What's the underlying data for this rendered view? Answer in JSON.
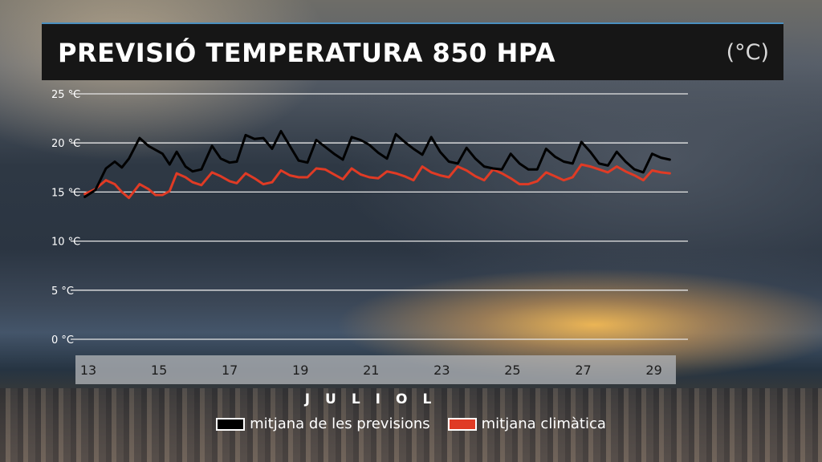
{
  "title": "PREVISIÓ TEMPERATURA 850 HPA",
  "unit": "(°C)",
  "chart_data": {
    "type": "line",
    "title": "PREVISIÓ TEMPERATURA 850 HPA",
    "xlabel": "JULIOL",
    "ylabel": "",
    "ylim": [
      0,
      25
    ],
    "xlim": [
      13,
      29.6
    ],
    "yticks": [
      0,
      5,
      10,
      15,
      20,
      25
    ],
    "ytick_labels": [
      "0 °C",
      "5 °C",
      "10 °C",
      "15 °C",
      "20 °C",
      "25 °C"
    ],
    "xticks": [
      13,
      15,
      17,
      19,
      21,
      23,
      25,
      27,
      29
    ],
    "xtick_labels": [
      "13",
      "15",
      "17",
      "19",
      "21",
      "23",
      "25",
      "27",
      "29"
    ],
    "grid": true,
    "legend_position": "bottom-center",
    "series": [
      {
        "name": "mitjana de les previsions",
        "color": "#000000",
        "x": [
          12.9,
          13.2,
          13.5,
          13.75,
          13.95,
          14.15,
          14.45,
          14.7,
          14.9,
          15.1,
          15.3,
          15.5,
          15.75,
          15.95,
          16.2,
          16.5,
          16.75,
          17,
          17.2,
          17.45,
          17.7,
          17.95,
          18.2,
          18.45,
          18.7,
          18.95,
          19.2,
          19.45,
          19.7,
          19.95,
          20.2,
          20.45,
          20.7,
          20.95,
          21.2,
          21.45,
          21.7,
          21.95,
          22.2,
          22.45,
          22.7,
          22.95,
          23.2,
          23.45,
          23.7,
          23.95,
          24.2,
          24.45,
          24.7,
          24.95,
          25.2,
          25.45,
          25.7,
          25.95,
          26.2,
          26.45,
          26.7,
          26.95,
          27.2,
          27.45,
          27.7,
          27.95,
          28.2,
          28.45,
          28.7,
          28.95,
          29.2,
          29.45
        ],
        "y": [
          14.5,
          15.2,
          17.4,
          18.1,
          17.5,
          18.4,
          20.5,
          19.7,
          19.3,
          18.9,
          17.8,
          19.1,
          17.6,
          17.1,
          17.3,
          19.7,
          18.4,
          18.0,
          18.1,
          20.8,
          20.4,
          20.5,
          19.4,
          21.2,
          19.7,
          18.2,
          18.0,
          20.3,
          19.6,
          18.9,
          18.3,
          20.6,
          20.3,
          19.8,
          19.0,
          18.4,
          20.9,
          20.1,
          19.4,
          18.8,
          20.6,
          19.1,
          18.1,
          17.9,
          19.5,
          18.4,
          17.6,
          17.4,
          17.3,
          18.9,
          17.9,
          17.3,
          17.3,
          19.4,
          18.6,
          18.1,
          17.9,
          20.1,
          19.1,
          17.9,
          17.7,
          19.1,
          18.1,
          17.3,
          17.0,
          18.9,
          18.5,
          18.3
        ]
      },
      {
        "name": "mitjana climàtica",
        "color": "#e03b25",
        "x": [
          12.9,
          13.2,
          13.5,
          13.75,
          13.95,
          14.15,
          14.45,
          14.7,
          14.9,
          15.1,
          15.3,
          15.5,
          15.75,
          15.95,
          16.2,
          16.5,
          16.75,
          17,
          17.2,
          17.45,
          17.7,
          17.95,
          18.2,
          18.45,
          18.7,
          18.95,
          19.2,
          19.45,
          19.7,
          19.95,
          20.2,
          20.45,
          20.7,
          20.95,
          21.2,
          21.45,
          21.7,
          21.95,
          22.2,
          22.45,
          22.7,
          22.95,
          23.2,
          23.45,
          23.7,
          23.95,
          24.2,
          24.45,
          24.7,
          24.95,
          25.2,
          25.45,
          25.7,
          25.95,
          26.2,
          26.45,
          26.7,
          26.95,
          27.2,
          27.45,
          27.7,
          27.95,
          28.2,
          28.45,
          28.7,
          28.95,
          29.2,
          29.45
        ],
        "y": [
          14.8,
          15.3,
          16.2,
          15.8,
          15.0,
          14.4,
          15.8,
          15.3,
          14.7,
          14.7,
          15.1,
          16.9,
          16.5,
          16.0,
          15.7,
          17.0,
          16.6,
          16.1,
          15.9,
          16.9,
          16.4,
          15.8,
          16.0,
          17.2,
          16.7,
          16.5,
          16.5,
          17.4,
          17.3,
          16.8,
          16.3,
          17.4,
          16.8,
          16.5,
          16.4,
          17.1,
          16.9,
          16.6,
          16.2,
          17.6,
          17.0,
          16.7,
          16.5,
          17.6,
          17.2,
          16.6,
          16.2,
          17.3,
          16.9,
          16.4,
          15.8,
          15.8,
          16.1,
          17.0,
          16.6,
          16.2,
          16.5,
          17.8,
          17.6,
          17.3,
          17.0,
          17.6,
          17.1,
          16.7,
          16.2,
          17.2,
          17.0,
          16.9
        ]
      }
    ]
  },
  "legend": {
    "items": [
      {
        "label": "mitjana de les previsions",
        "color": "#000000"
      },
      {
        "label": "mitjana climàtica",
        "color": "#e03b25"
      }
    ]
  }
}
